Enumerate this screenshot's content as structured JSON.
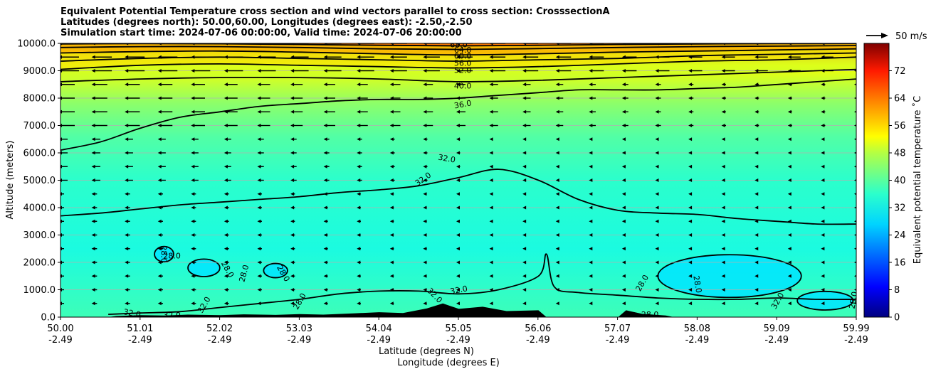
{
  "title_lines": [
    "Equivalent Potential Temperature cross section and wind vectors parallel to cross section: CrosssectionA",
    "Latitudes (degrees north): 50.00,60.00, Longitudes (degrees east): -2.50,-2.50",
    "Simulation start time: 2024-07-06 00:00:00, Valid time: 2024-07-06 20:00:00"
  ],
  "chart_data": {
    "type": "heatmap",
    "subtype": "cross-section filled contour with contour lines and wind vectors",
    "ylabel": "Altitude (meters)",
    "xlabel_1": "Latitude (degrees N)",
    "xlabel_2": "Longitude (degrees E)",
    "ylim": [
      0,
      10000
    ],
    "xlim": [
      50.0,
      59.99
    ],
    "yticks": [
      "0.0",
      "1000.0",
      "2000.0",
      "3000.0",
      "4000.0",
      "5000.0",
      "6000.0",
      "7000.0",
      "8000.0",
      "9000.0",
      "10000.0"
    ],
    "xticks_lat": [
      "50.00",
      "51.01",
      "52.02",
      "53.03",
      "54.04",
      "55.05",
      "56.06",
      "57.07",
      "58.08",
      "59.09",
      "59.99"
    ],
    "xticks_lon": [
      "-2.49",
      "-2.49",
      "-2.49",
      "-2.49",
      "-2.49",
      "-2.49",
      "-2.49",
      "-2.49",
      "-2.49",
      "-2.49",
      "-2.49"
    ],
    "grid": "horizontal",
    "colorbar": {
      "label": "Equivalent potential temperature ˚C",
      "range": [
        0,
        80
      ],
      "ticks": [
        "0",
        "8",
        "16",
        "24",
        "32",
        "40",
        "48",
        "56",
        "64",
        "72"
      ],
      "colormap": "jet"
    },
    "quiver_key": {
      "label": "50 m/s",
      "placement": "top-right"
    },
    "contour_labels": [
      "68.0",
      "64.0",
      "60.0",
      "56.0",
      "52.0",
      "40.0",
      "36.0",
      "32.0",
      "32.0",
      "28.0",
      "28.0",
      "28.0",
      "28.0",
      "28.0",
      "28.0",
      "28.0",
      "32.0",
      "32.0",
      "32.0",
      "32.0",
      "28.0",
      "32.0",
      "32.0",
      "28.0",
      "28.0"
    ],
    "contour_levels": [
      28,
      32,
      36,
      40,
      52,
      56,
      60,
      64,
      68
    ],
    "contours": [
      {
        "level": 36,
        "points": [
          [
            50.0,
            6100
          ],
          [
            50.5,
            6400
          ],
          [
            51.0,
            6900
          ],
          [
            51.5,
            7300
          ],
          [
            52.0,
            7500
          ],
          [
            52.5,
            7700
          ],
          [
            53.0,
            7800
          ],
          [
            53.5,
            7900
          ],
          [
            54.0,
            7950
          ],
          [
            54.5,
            7950
          ],
          [
            55.0,
            8000
          ],
          [
            55.5,
            8100
          ],
          [
            56.0,
            8200
          ],
          [
            56.5,
            8300
          ],
          [
            57.0,
            8300
          ],
          [
            57.5,
            8300
          ],
          [
            58.0,
            8350
          ],
          [
            58.5,
            8400
          ],
          [
            59.0,
            8500
          ],
          [
            59.5,
            8600
          ],
          [
            59.99,
            8700
          ]
        ]
      },
      {
        "level": 40,
        "points": [
          [
            50.0,
            8600
          ],
          [
            51.0,
            8700
          ],
          [
            52.0,
            8750
          ],
          [
            53.0,
            8750
          ],
          [
            54.0,
            8700
          ],
          [
            55.0,
            8600
          ],
          [
            56.0,
            8650
          ],
          [
            57.0,
            8750
          ],
          [
            58.0,
            8850
          ],
          [
            59.0,
            8950
          ],
          [
            59.99,
            9050
          ]
        ]
      },
      {
        "level": 32,
        "points": [
          [
            50.0,
            3700
          ],
          [
            50.5,
            3800
          ],
          [
            51.0,
            3950
          ],
          [
            51.5,
            4100
          ],
          [
            52.0,
            4200
          ],
          [
            52.5,
            4300
          ],
          [
            53.0,
            4400
          ],
          [
            53.5,
            4550
          ],
          [
            54.0,
            4650
          ],
          [
            54.5,
            4800
          ],
          [
            55.0,
            5100
          ],
          [
            55.5,
            5400
          ],
          [
            56.0,
            5000
          ],
          [
            56.5,
            4300
          ],
          [
            57.0,
            3900
          ],
          [
            57.5,
            3800
          ],
          [
            58.0,
            3750
          ],
          [
            58.5,
            3600
          ],
          [
            59.0,
            3500
          ],
          [
            59.5,
            3400
          ],
          [
            59.99,
            3400
          ]
        ]
      },
      {
        "level": 32,
        "points": [
          [
            50.6,
            100
          ],
          [
            51.0,
            150
          ],
          [
            51.5,
            200
          ],
          [
            52.0,
            350
          ],
          [
            52.5,
            500
          ],
          [
            53.0,
            650
          ],
          [
            53.5,
            850
          ],
          [
            54.0,
            950
          ],
          [
            54.5,
            950
          ],
          [
            55.0,
            850
          ],
          [
            55.5,
            1000
          ],
          [
            56.0,
            1500
          ],
          [
            56.1,
            2300
          ],
          [
            56.2,
            1100
          ],
          [
            56.5,
            900
          ],
          [
            57.0,
            800
          ],
          [
            57.5,
            700
          ],
          [
            58.0,
            650
          ],
          [
            58.5,
            650
          ],
          [
            59.0,
            700
          ],
          [
            59.5,
            650
          ],
          [
            59.99,
            650
          ]
        ]
      },
      {
        "level": 52,
        "points": [
          [
            50.0,
            9050
          ],
          [
            51.0,
            9200
          ],
          [
            52.0,
            9250
          ],
          [
            53.0,
            9200
          ],
          [
            54.0,
            9150
          ],
          [
            55.0,
            9100
          ],
          [
            56.0,
            9150
          ],
          [
            57.0,
            9250
          ],
          [
            58.0,
            9350
          ],
          [
            59.0,
            9400
          ],
          [
            59.99,
            9500
          ]
        ]
      },
      {
        "level": 56,
        "points": [
          [
            50.0,
            9350
          ],
          [
            51.0,
            9450
          ],
          [
            52.0,
            9500
          ],
          [
            53.0,
            9450
          ],
          [
            54.0,
            9400
          ],
          [
            55.0,
            9350
          ],
          [
            56.0,
            9400
          ],
          [
            57.0,
            9450
          ],
          [
            58.0,
            9550
          ],
          [
            59.0,
            9600
          ],
          [
            59.99,
            9650
          ]
        ]
      },
      {
        "level": 60,
        "points": [
          [
            50.0,
            9650
          ],
          [
            51.0,
            9700
          ],
          [
            52.0,
            9720
          ],
          [
            53.0,
            9680
          ],
          [
            54.0,
            9620
          ],
          [
            55.0,
            9580
          ],
          [
            56.0,
            9620
          ],
          [
            57.0,
            9680
          ],
          [
            58.0,
            9720
          ],
          [
            59.0,
            9760
          ],
          [
            59.99,
            9800
          ]
        ]
      },
      {
        "level": 64,
        "points": [
          [
            50.0,
            9850
          ],
          [
            51.0,
            9880
          ],
          [
            52.0,
            9880
          ],
          [
            53.0,
            9850
          ],
          [
            54.0,
            9800
          ],
          [
            55.0,
            9780
          ],
          [
            56.0,
            9810
          ],
          [
            57.0,
            9850
          ],
          [
            58.0,
            9880
          ],
          [
            59.0,
            9900
          ],
          [
            59.99,
            9920
          ]
        ]
      },
      {
        "level": 68,
        "points": [
          [
            50.0,
            9980
          ],
          [
            51.0,
            9990
          ],
          [
            52.0,
            9985
          ],
          [
            53.0,
            9960
          ],
          [
            54.0,
            9930
          ],
          [
            55.0,
            9910
          ],
          [
            56.0,
            9930
          ],
          [
            57.0,
            9960
          ],
          [
            58.0,
            9980
          ],
          [
            59.0,
            9990
          ],
          [
            59.99,
            9995
          ]
        ]
      }
    ]
  }
}
